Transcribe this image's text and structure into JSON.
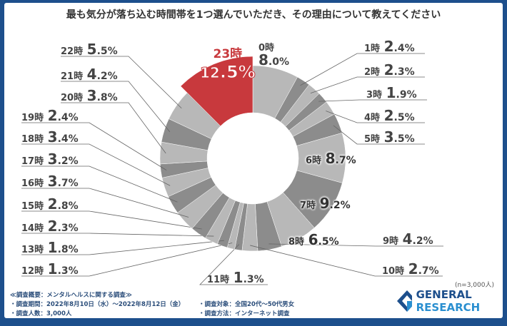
{
  "title": "最も気分が落ち込む時間帯を1つ選んでいただき、その理由について教えてください",
  "chart_data": {
    "type": "pie",
    "variant": "donut",
    "categories": [
      "0時",
      "1時",
      "2時",
      "3時",
      "4時",
      "5時",
      "6時",
      "7時",
      "8時",
      "9時",
      "10時",
      "11時",
      "12時",
      "13時",
      "14時",
      "15時",
      "16時",
      "17時",
      "18時",
      "19時",
      "20時",
      "21時",
      "22時",
      "23時"
    ],
    "values": [
      8.0,
      2.4,
      2.3,
      1.9,
      2.5,
      3.5,
      8.7,
      9.2,
      6.5,
      4.2,
      2.7,
      1.3,
      1.3,
      1.8,
      2.3,
      2.8,
      3.7,
      3.2,
      3.4,
      2.4,
      3.8,
      4.2,
      5.5,
      12.5
    ],
    "unit": "%",
    "highlight": "23時",
    "colors": {
      "light": "#b8b8b8",
      "dark": "#8c8c8c",
      "highlight": "#c8393d"
    }
  },
  "sample_note": "(n=3,000人)",
  "survey": {
    "heading": "≪調査概要：メンタルヘルスに関する調査≫",
    "period": "・調査期間：2022年8月10日（水）～2022年8月12日（金）",
    "count": "・調査人数：3,000人",
    "target": "・調査対象：全国20代～50代男女",
    "method": "・調査方法：インターネット調査"
  },
  "logo": {
    "word1": "GENERAL",
    "word2": "RESEARCH"
  }
}
